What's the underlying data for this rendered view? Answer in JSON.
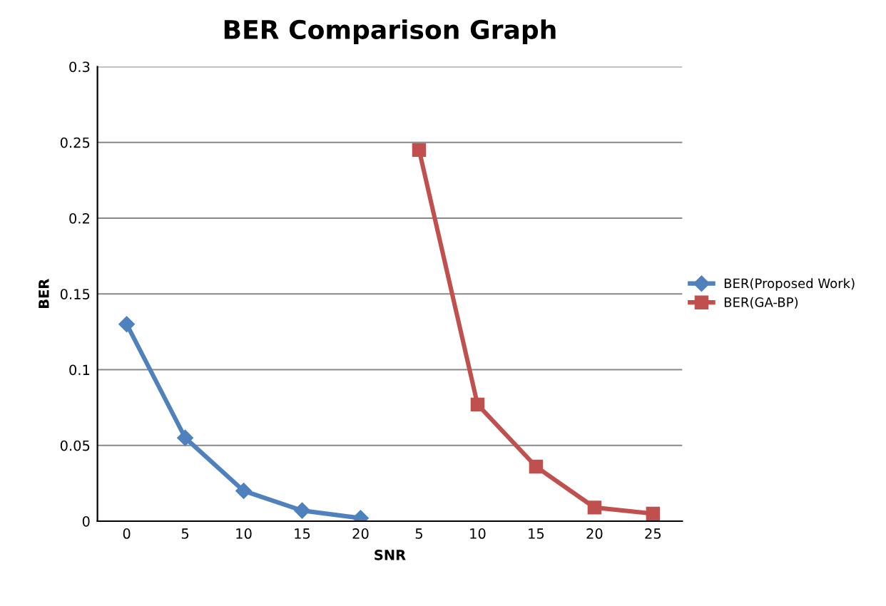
{
  "chart_data": {
    "type": "line",
    "title": "BER Comparison Graph",
    "xlabel": "SNR",
    "ylabel": "BER",
    "categories": [
      "0",
      "5",
      "10",
      "15",
      "20",
      "5",
      "10",
      "15",
      "20",
      "25"
    ],
    "series": [
      {
        "name": "BER(Proposed Work)",
        "color": "#4f81bd",
        "marker": "diamond",
        "values": [
          0.13,
          0.055,
          0.02,
          0.007,
          0.002,
          null,
          null,
          null,
          null,
          null
        ]
      },
      {
        "name": "BER(GA-BP)",
        "color": "#c0504d",
        "marker": "square",
        "values": [
          null,
          null,
          null,
          null,
          null,
          0.245,
          0.077,
          0.036,
          0.009,
          0.005
        ]
      }
    ],
    "ylim": [
      0,
      0.3
    ],
    "yticks": [
      0,
      0.05,
      0.1,
      0.15,
      0.2,
      0.25,
      0.3
    ],
    "grid": "y",
    "legend": "right",
    "line_style": "solid"
  }
}
